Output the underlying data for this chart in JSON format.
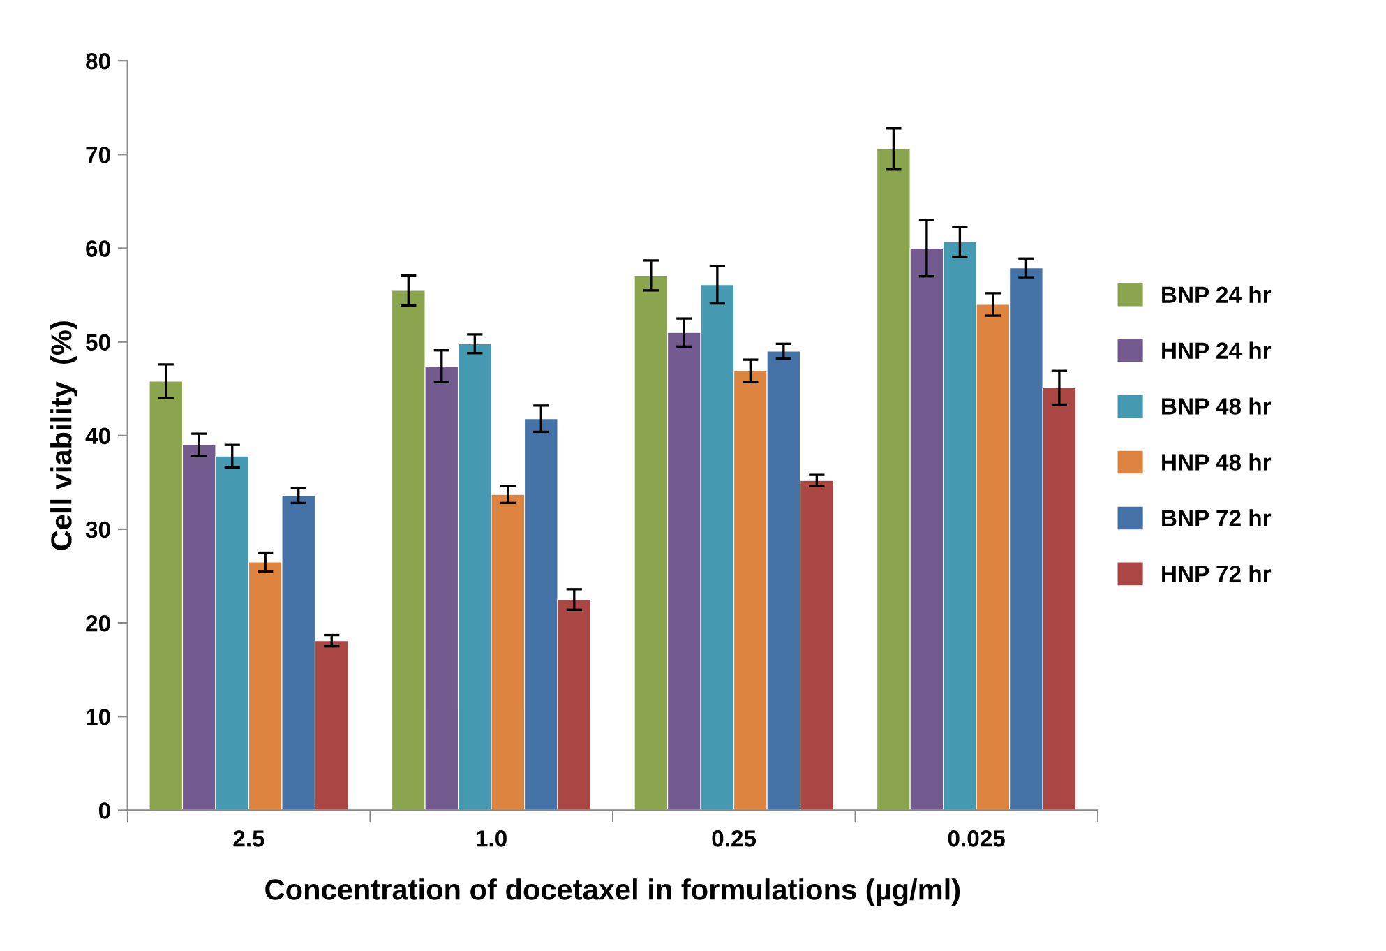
{
  "chart_data": {
    "type": "bar",
    "xlabel": "Concentration of docetaxel in formulations (µg/ml)",
    "ylabel": "Cell viability  (%)",
    "categories": [
      "2.5",
      "1.0",
      "0.25",
      "0.025"
    ],
    "series": [
      {
        "name": "BNP 24 hr",
        "color": "#8ba54e",
        "values": [
          45.8,
          55.5,
          57.1,
          70.6
        ],
        "errors": [
          1.8,
          1.6,
          1.6,
          2.2
        ]
      },
      {
        "name": "HNP 24 hr",
        "color": "#735a8f",
        "values": [
          39.0,
          47.4,
          51.0,
          60.0
        ],
        "errors": [
          1.2,
          1.7,
          1.5,
          3.0
        ]
      },
      {
        "name": "BNP 48 hr",
        "color": "#4599b0",
        "values": [
          37.8,
          49.8,
          56.1,
          60.7
        ],
        "errors": [
          1.2,
          1.0,
          2.0,
          1.6
        ]
      },
      {
        "name": "HNP 48 hr",
        "color": "#dd8540",
        "values": [
          26.5,
          33.7,
          46.9,
          54.0
        ],
        "errors": [
          1.0,
          0.9,
          1.2,
          1.2
        ]
      },
      {
        "name": "BNP 72 hr",
        "color": "#4572a7",
        "values": [
          33.6,
          41.8,
          49.0,
          57.9
        ],
        "errors": [
          0.8,
          1.4,
          0.8,
          1.0
        ]
      },
      {
        "name": "HNP 72 hr",
        "color": "#aa4644",
        "values": [
          18.1,
          22.5,
          35.2,
          45.1
        ],
        "errors": [
          0.6,
          1.1,
          0.6,
          1.8
        ]
      }
    ],
    "ylim": [
      0,
      80
    ],
    "yticks": [
      0,
      10,
      20,
      30,
      40,
      50,
      60,
      70,
      80
    ],
    "grid": false,
    "legend": "right"
  }
}
